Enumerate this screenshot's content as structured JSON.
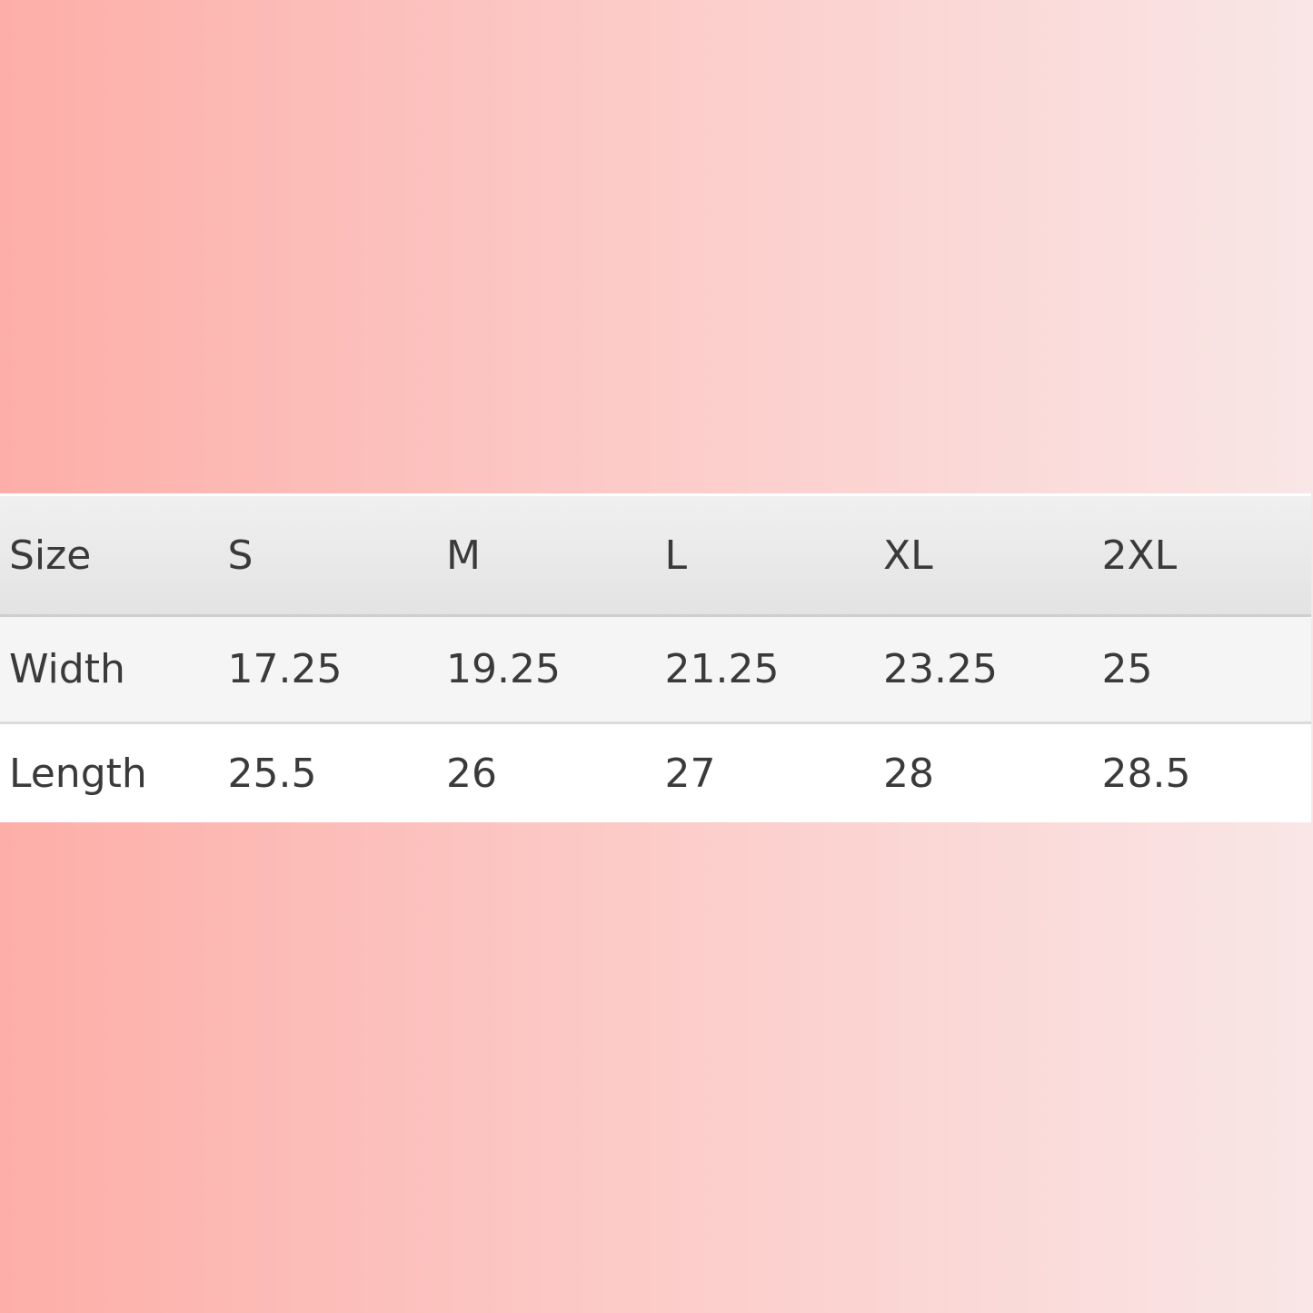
{
  "table": {
    "header": [
      "Size",
      "S",
      "M",
      "L",
      "XL",
      "2XL"
    ],
    "rows": [
      [
        "Width",
        "17.25",
        "19.25",
        "21.25",
        "23.25",
        "25"
      ],
      [
        "Length",
        "25.5",
        "26",
        "27",
        "28",
        "28.5"
      ]
    ]
  }
}
